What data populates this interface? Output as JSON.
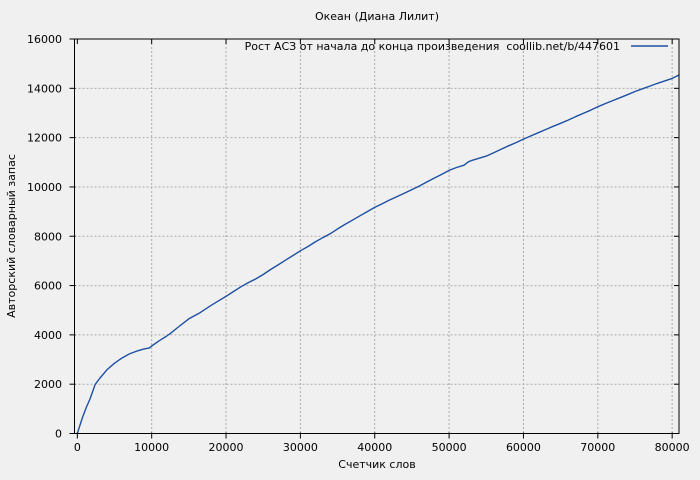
{
  "chart_data": {
    "type": "line",
    "title": "Океан (Диана Лилит)",
    "xlabel": "Счетчик слов",
    "ylabel": "Авторский словарный запас",
    "legend": {
      "label": "Рост АСЗ от начала до конца произведения  coollib.net/b/447601",
      "position": "top-inside-right"
    },
    "xlim": [
      -380,
      80920
    ],
    "ylim": [
      0,
      16000
    ],
    "xticks": [
      0,
      10000,
      20000,
      30000,
      40000,
      50000,
      60000,
      70000,
      80000
    ],
    "yticks": [
      0,
      2000,
      4000,
      6000,
      8000,
      10000,
      12000,
      14000,
      16000
    ],
    "grid": true,
    "colors": {
      "background": "#f0f0f0",
      "axis": "#000000",
      "grid": "#ababab",
      "series": "#1d50a2",
      "text": "#000000"
    },
    "series": [
      {
        "name": "Рост АСЗ",
        "points": [
          [
            0,
            0
          ],
          [
            300,
            290
          ],
          [
            700,
            650
          ],
          [
            1200,
            1050
          ],
          [
            1700,
            1400
          ],
          [
            2400,
            1990
          ],
          [
            3000,
            2230
          ],
          [
            4000,
            2590
          ],
          [
            5000,
            2850
          ],
          [
            6000,
            3060
          ],
          [
            7000,
            3230
          ],
          [
            8000,
            3340
          ],
          [
            9000,
            3430
          ],
          [
            9700,
            3470
          ],
          [
            10000,
            3550
          ],
          [
            11000,
            3760
          ],
          [
            12000,
            3950
          ],
          [
            12500,
            4050
          ],
          [
            13500,
            4300
          ],
          [
            15000,
            4650
          ],
          [
            16500,
            4900
          ],
          [
            18000,
            5200
          ],
          [
            19000,
            5380
          ],
          [
            20000,
            5560
          ],
          [
            21000,
            5760
          ],
          [
            22000,
            5950
          ],
          [
            23000,
            6120
          ],
          [
            24000,
            6270
          ],
          [
            25000,
            6450
          ],
          [
            26000,
            6650
          ],
          [
            27000,
            6840
          ],
          [
            28000,
            7030
          ],
          [
            29000,
            7220
          ],
          [
            30000,
            7410
          ],
          [
            31000,
            7580
          ],
          [
            32000,
            7770
          ],
          [
            33000,
            7940
          ],
          [
            34000,
            8100
          ],
          [
            35000,
            8300
          ],
          [
            36000,
            8480
          ],
          [
            37000,
            8650
          ],
          [
            38000,
            8830
          ],
          [
            39000,
            9000
          ],
          [
            40000,
            9170
          ],
          [
            41000,
            9320
          ],
          [
            42000,
            9470
          ],
          [
            43000,
            9610
          ],
          [
            44000,
            9750
          ],
          [
            45000,
            9890
          ],
          [
            46000,
            10040
          ],
          [
            47000,
            10200
          ],
          [
            48000,
            10360
          ],
          [
            49000,
            10510
          ],
          [
            50000,
            10670
          ],
          [
            51000,
            10790
          ],
          [
            52000,
            10880
          ],
          [
            52600,
            11020
          ],
          [
            53000,
            11070
          ],
          [
            54000,
            11160
          ],
          [
            55000,
            11250
          ],
          [
            56000,
            11390
          ],
          [
            57000,
            11530
          ],
          [
            58000,
            11670
          ],
          [
            59000,
            11800
          ],
          [
            60000,
            11940
          ],
          [
            61000,
            12070
          ],
          [
            62000,
            12200
          ],
          [
            63000,
            12330
          ],
          [
            64000,
            12460
          ],
          [
            65000,
            12580
          ],
          [
            66000,
            12710
          ],
          [
            67000,
            12850
          ],
          [
            68000,
            12980
          ],
          [
            69000,
            13110
          ],
          [
            70000,
            13250
          ],
          [
            71000,
            13380
          ],
          [
            72000,
            13500
          ],
          [
            73000,
            13620
          ],
          [
            74000,
            13740
          ],
          [
            75000,
            13870
          ],
          [
            76000,
            13980
          ],
          [
            77000,
            14090
          ],
          [
            78000,
            14200
          ],
          [
            79000,
            14300
          ],
          [
            80000,
            14400
          ],
          [
            80900,
            14540
          ]
        ]
      }
    ]
  }
}
